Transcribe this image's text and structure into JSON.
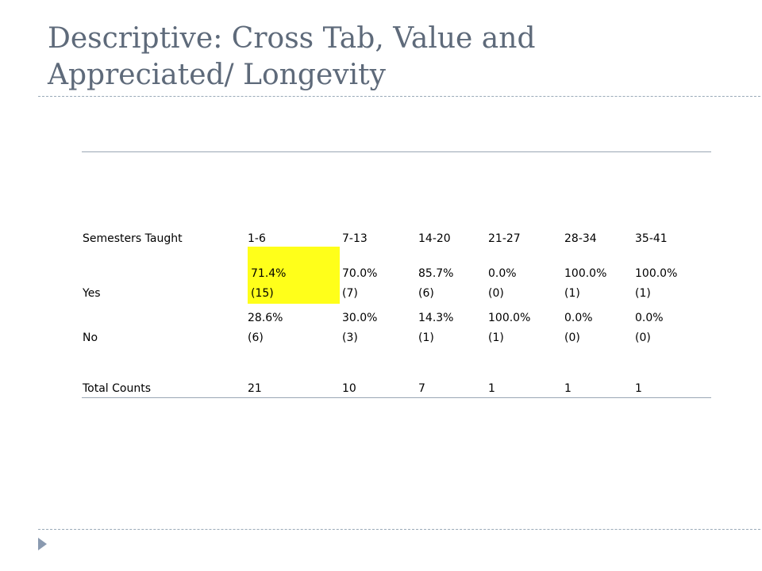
{
  "slide": {
    "title_line1": "Descriptive: Cross Tab, Value and",
    "title_line2": "Appreciated/ Longevity"
  },
  "table": {
    "header": {
      "label": "Semesters Taught",
      "columns": [
        "1-6",
        "7-13",
        "14-20",
        "21-27",
        "28-34",
        "35-41"
      ]
    },
    "rows": [
      {
        "label": "Yes",
        "percents": [
          "71.4%",
          "70.0%",
          "85.7%",
          "0.0%",
          "100.0%",
          "100.0%"
        ],
        "counts": [
          " (15)",
          "(7)",
          "(6)",
          "(0)",
          "(1)",
          "(1)"
        ]
      },
      {
        "label": "No",
        "percents": [
          "28.6%",
          "30.0%",
          "14.3%",
          "100.0%",
          "0.0%",
          "0.0%"
        ],
        "counts": [
          "(6)",
          "(3)",
          "(1)",
          " (1)",
          "(0)",
          "(0)"
        ]
      }
    ],
    "totals": {
      "label": "Total Counts",
      "values": [
        "21",
        "10",
        "7",
        "1",
        "1",
        "1"
      ]
    },
    "highlight_color": "#ffff1a"
  }
}
